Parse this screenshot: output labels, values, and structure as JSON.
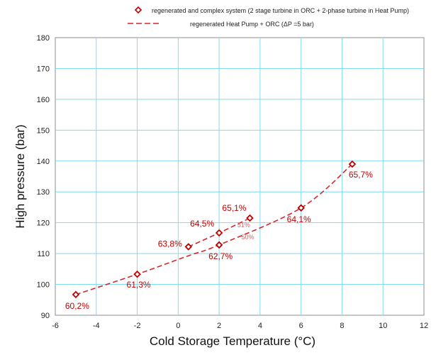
{
  "chart_data": {
    "type": "scatter",
    "title": "",
    "xlabel": "Cold Storage Temperature (°C)",
    "ylabel": "High pressure (bar)",
    "xlim": [
      -6,
      12
    ],
    "ylim": [
      90,
      180
    ],
    "x_ticks": [
      "-6",
      "-4",
      "-2",
      "0",
      "2",
      "4",
      "6",
      "8",
      "10",
      "12"
    ],
    "y_ticks": [
      "90",
      "100",
      "110",
      "120",
      "130",
      "140",
      "150",
      "160",
      "170",
      "180"
    ],
    "grid": true,
    "legend_position": "top",
    "colors": {
      "series": "#d62728",
      "marker": "#c00000",
      "label": "#c00000",
      "grid": "#7fdcf0"
    },
    "series": [
      {
        "name": "regenerated and complex system (2 stage turbine in ORC + 2-phase turbine in Heat Pump)",
        "style": "diamond-marker",
        "x": [
          -5,
          -2,
          0.5,
          2,
          2,
          3.5,
          6,
          8.5
        ],
        "y": [
          96.7,
          103.3,
          112.2,
          112.8,
          116.7,
          121.5,
          124.8,
          139
        ],
        "labels": [
          "60,2%",
          "61,3%",
          "63,8%",
          "62,7%",
          "64,5%",
          "65,1%",
          "64,1%",
          "65,7%"
        ]
      },
      {
        "name": "regenerated  Heat Pump + ORC (ΔP =5 bar)",
        "style": "dashed-line",
        "x": [
          -5,
          -2,
          0.5,
          2,
          6,
          8.5
        ],
        "y": [
          96.7,
          103.3,
          109.3,
          112.8,
          124.8,
          139
        ]
      },
      {
        "name": "",
        "style": "dashed-line",
        "x": [
          0.5,
          2,
          3.5
        ],
        "y": [
          112.2,
          116.7,
          121.5
        ]
      }
    ],
    "annotations": [
      {
        "text": "51%",
        "x": 3.2,
        "y": 118.5
      },
      {
        "text": "50%",
        "x": 3.4,
        "y": 114.6
      }
    ]
  }
}
